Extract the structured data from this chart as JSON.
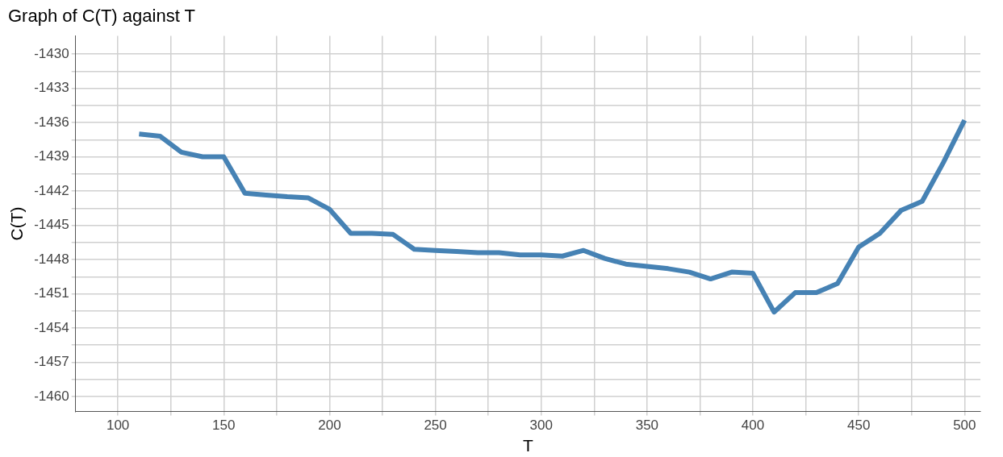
{
  "chart_data": {
    "type": "line",
    "title": "Graph of C(T) against T",
    "xlabel": "T",
    "ylabel": "C(T)",
    "x": [
      110,
      120,
      130,
      140,
      150,
      160,
      170,
      180,
      190,
      200,
      210,
      220,
      230,
      240,
      250,
      260,
      270,
      280,
      290,
      300,
      310,
      320,
      330,
      340,
      350,
      360,
      370,
      380,
      390,
      400,
      410,
      420,
      430,
      440,
      450,
      460,
      470,
      480,
      490,
      500
    ],
    "series": [
      {
        "color": "#4682b4",
        "values": [
          -1437.0,
          -1437.2,
          -1438.6,
          -1439.0,
          -1439.0,
          -1442.2,
          -1442.35,
          -1442.5,
          -1442.6,
          -1443.6,
          -1445.7,
          -1445.7,
          -1445.8,
          -1447.1,
          -1447.2,
          -1447.3,
          -1447.4,
          -1447.4,
          -1447.6,
          -1447.6,
          -1447.7,
          -1447.2,
          -1447.9,
          -1448.4,
          -1448.6,
          -1448.8,
          -1449.1,
          -1449.7,
          -1449.1,
          -1449.2,
          -1452.6,
          -1450.9,
          -1450.9,
          -1450.1,
          -1446.9,
          -1445.7,
          -1443.7,
          -1442.9,
          -1439.5,
          -1435.8
        ]
      }
    ],
    "xlim": [
      80,
      507.5
    ],
    "ylim": [
      -1461.3,
      -1428.4
    ],
    "xticks": [
      100,
      {
        "value": 125,
        "label": null
      },
      150,
      {
        "value": 175,
        "label": null
      },
      200,
      {
        "value": 225,
        "label": null
      },
      250,
      {
        "value": 275,
        "label": null
      },
      300,
      {
        "value": 325,
        "label": null
      },
      350,
      {
        "value": 375,
        "label": null
      },
      400,
      {
        "value": 425,
        "label": null
      },
      450,
      {
        "value": 475,
        "label": null
      },
      500
    ],
    "yticks": [
      -1430,
      {
        "value": -1431.5,
        "label": null
      },
      -1433,
      {
        "value": -1434.5,
        "label": null
      },
      -1436,
      {
        "value": -1437.5,
        "label": null
      },
      -1439,
      {
        "value": -1440.5,
        "label": null
      },
      -1442,
      {
        "value": -1443.5,
        "label": null
      },
      -1445,
      {
        "value": -1446.5,
        "label": null
      },
      -1448,
      {
        "value": -1449.5,
        "label": null
      },
      -1451,
      {
        "value": -1452.5,
        "label": null
      },
      -1454,
      {
        "value": -1455.5,
        "label": null
      },
      -1457,
      {
        "value": -1458.5,
        "label": null
      },
      -1460
    ],
    "grid": true,
    "legend": false,
    "marker": "none",
    "line_style": "solid"
  }
}
